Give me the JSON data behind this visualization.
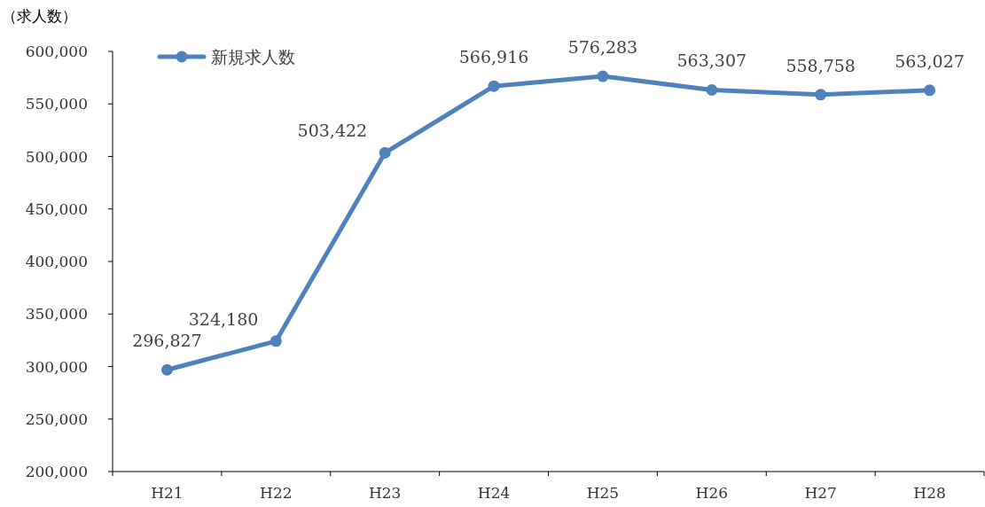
{
  "chart_data": {
    "type": "line",
    "ylabel": "（求人数）",
    "categories": [
      "H21",
      "H22",
      "H23",
      "H24",
      "H25",
      "H26",
      "H27",
      "H28"
    ],
    "series": [
      {
        "name": "新規求人数",
        "color": "#4f81bd",
        "values": [
          296827,
          324180,
          503422,
          566916,
          576283,
          563307,
          558758,
          563027
        ],
        "value_labels": [
          "296,827",
          "324,180",
          "503,422",
          "566,916",
          "576,283",
          "563,307",
          "558,758",
          "563,027"
        ]
      }
    ],
    "ylim": [
      200000,
      600000
    ],
    "yticks": [
      {
        "value": 200000,
        "label": "200,000"
      },
      {
        "value": 250000,
        "label": "250,000"
      },
      {
        "value": 300000,
        "label": "300,000"
      },
      {
        "value": 350000,
        "label": "350,000"
      },
      {
        "value": 400000,
        "label": "400,000"
      },
      {
        "value": 450000,
        "label": "450,000"
      },
      {
        "value": 500000,
        "label": "500,000"
      },
      {
        "value": 550000,
        "label": "550,000"
      },
      {
        "value": 600000,
        "label": "600,000"
      }
    ],
    "legend": "top left",
    "marker": "circle",
    "line_style": "solid"
  }
}
